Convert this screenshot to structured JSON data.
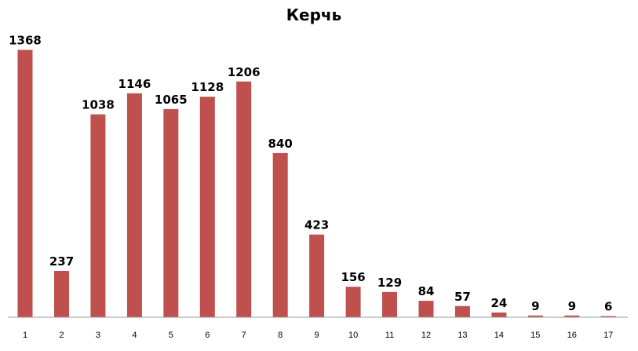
{
  "chart_data": {
    "type": "bar",
    "title": "Керчь",
    "categories": [
      "1",
      "2",
      "3",
      "4",
      "5",
      "6",
      "7",
      "8",
      "9",
      "10",
      "11",
      "12",
      "13",
      "14",
      "15",
      "16",
      "17"
    ],
    "values": [
      1368,
      237,
      1038,
      1146,
      1065,
      1128,
      1206,
      840,
      423,
      156,
      129,
      84,
      57,
      24,
      9,
      9,
      6
    ],
    "ylim": [
      0,
      1370
    ],
    "bar_color": "#C0504D",
    "grid": false,
    "legend": "none",
    "data_labels": true
  }
}
